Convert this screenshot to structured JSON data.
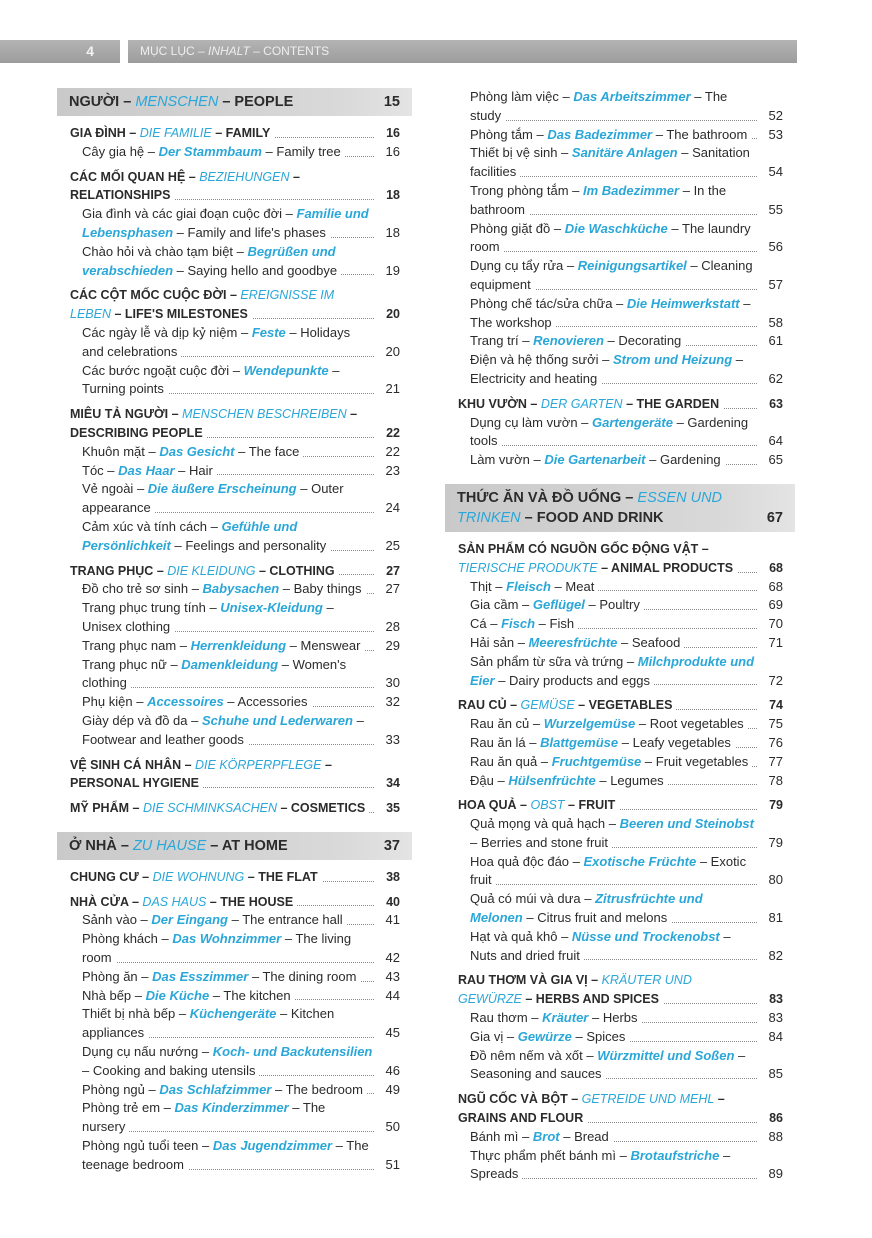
{
  "header": {
    "page_number": "4",
    "title_vi": "MỤC LỤC – ",
    "title_de": "INHALT",
    "title_en": " – CONTENTS"
  },
  "colors": {
    "accent": "#2aa7d8",
    "chapter_bg": "#d0d0d0"
  },
  "left_column": [
    {
      "type": "chapter",
      "vi": "NGƯỜI",
      "de": "MENSCHEN",
      "en": "PEOPLE",
      "page": "15"
    },
    {
      "type": "section",
      "vi": "GIA ĐÌNH",
      "de": "DIE FAMILIE",
      "en": "FAMILY",
      "page": "16"
    },
    {
      "type": "item",
      "vi": "Cây gia hệ",
      "de": "Der Stammbaum",
      "en": "Family tree",
      "page": "16"
    },
    {
      "type": "section",
      "vi": "CÁC MỐI QUAN HỆ",
      "de": "BEZIEHUNGEN",
      "en": "RELATIONSHIPS",
      "page": "18"
    },
    {
      "type": "item",
      "vi": "Gia đình và các giai đoạn cuộc đời",
      "de": "Familie und Lebensphasen",
      "en": "Family and life's phases",
      "page": "18"
    },
    {
      "type": "item",
      "vi": "Chào hỏi và chào tạm biệt",
      "de": "Begrüßen und verabschieden",
      "en": "Saying hello and goodbye",
      "page": "19"
    },
    {
      "type": "section",
      "vi": "CÁC CỘT MỐC CUỘC ĐỜI",
      "de": "EREIGNISSE IM LEBEN",
      "en": "LIFE'S MILESTONES",
      "page": "20"
    },
    {
      "type": "item",
      "vi": "Các ngày lễ và dịp kỷ niệm",
      "de": "Feste",
      "en": "Holidays and celebrations",
      "page": "20"
    },
    {
      "type": "item",
      "vi": "Các bước ngoặt cuộc đời",
      "de": "Wendepunkte",
      "en": "Turning points",
      "page": "21"
    },
    {
      "type": "section",
      "vi": "MIÊU TẢ NGƯỜI",
      "de": "MENSCHEN BESCHREIBEN",
      "en": "DESCRIBING PEOPLE",
      "page": "22"
    },
    {
      "type": "item",
      "vi": "Khuôn mặt",
      "de": "Das Gesicht",
      "en": "The face",
      "page": "22"
    },
    {
      "type": "item",
      "vi": "Tóc",
      "de": "Das Haar",
      "en": "Hair",
      "page": "23"
    },
    {
      "type": "item",
      "vi": "Vẻ ngoài",
      "de": "Die äußere Erscheinung",
      "en": "Outer appearance",
      "page": "24"
    },
    {
      "type": "item",
      "vi": "Cảm xúc và tính cách",
      "de": "Gefühle und Persönlichkeit",
      "en": "Feelings and personality",
      "page": "25"
    },
    {
      "type": "section",
      "vi": "TRANG PHỤC",
      "de": "DIE KLEIDUNG",
      "en": "CLOTHING",
      "page": "27"
    },
    {
      "type": "item",
      "vi": "Đồ cho trẻ sơ sinh",
      "de": "Babysachen",
      "en": "Baby things",
      "page": "27"
    },
    {
      "type": "item",
      "vi": "Trang phục trung tính",
      "de": "Unisex-Kleidung",
      "en": "Unisex clothing",
      "page": "28"
    },
    {
      "type": "item",
      "vi": "Trang phục nam",
      "de": "Herrenkleidung",
      "en": "Menswear",
      "page": "29"
    },
    {
      "type": "item",
      "vi": "Trang phục nữ",
      "de": "Damenkleidung",
      "en": "Women's clothing",
      "page": "30"
    },
    {
      "type": "item",
      "vi": "Phụ kiện",
      "de": "Accessoires",
      "en": "Accessories",
      "page": "32"
    },
    {
      "type": "item",
      "vi": "Giày dép và đồ da",
      "de": "Schuhe und Lederwaren",
      "en": "Footwear and leather goods",
      "page": "33"
    },
    {
      "type": "section",
      "vi": "VỆ SINH CÁ NHÂN",
      "de": "DIE KÖRPERPFLEGE",
      "en": "PERSONAL HYGIENE",
      "page": "34"
    },
    {
      "type": "section",
      "vi": "MỸ PHẨM",
      "de": "DIE SCHMINKSACHEN",
      "en": "COSMETICS",
      "page": "35"
    },
    {
      "type": "chapter",
      "vi": "Ở NHÀ",
      "de": "ZU HAUSE",
      "en": "AT HOME",
      "page": "37"
    },
    {
      "type": "section",
      "vi": "CHUNG CƯ",
      "de": "DIE WOHNUNG",
      "en": "THE FLAT",
      "page": "38"
    },
    {
      "type": "section",
      "vi": "NHÀ CỬA",
      "de": "DAS HAUS",
      "en": "THE HOUSE",
      "page": "40"
    },
    {
      "type": "item",
      "vi": "Sảnh vào",
      "de": "Der Eingang",
      "en": "The entrance hall",
      "page": "41"
    },
    {
      "type": "item",
      "vi": "Phòng khách",
      "de": "Das Wohnzimmer",
      "en": "The living room",
      "page": "42"
    },
    {
      "type": "item",
      "vi": "Phòng ăn",
      "de": "Das Esszimmer",
      "en": "The dining room",
      "page": "43"
    },
    {
      "type": "item",
      "vi": "Nhà bếp",
      "de": "Die Küche",
      "en": "The kitchen",
      "page": "44"
    },
    {
      "type": "item",
      "vi": "Thiết bị nhà bếp",
      "de": "Küchengeräte",
      "en": "Kitchen appliances",
      "page": "45"
    },
    {
      "type": "item",
      "vi": "Dụng cụ nấu nướng",
      "de": "Koch- und Backutensilien",
      "en": "Cooking and baking utensils",
      "page": "46"
    },
    {
      "type": "item",
      "vi": "Phòng ngủ",
      "de": "Das Schlafzimmer",
      "en": "The bedroom",
      "page": "49"
    },
    {
      "type": "item",
      "vi": "Phòng trẻ em",
      "de": "Das Kinderzimmer",
      "en": "The nursery",
      "page": "50"
    },
    {
      "type": "item",
      "vi": "Phòng ngủ tuổi teen",
      "de": "Das Jugendzimmer",
      "en": "The teenage bedroom",
      "page": "51"
    }
  ],
  "right_column": [
    {
      "type": "item",
      "vi": "Phòng làm việc",
      "de": "Das Arbeitszimmer",
      "en": "The study",
      "page": "52"
    },
    {
      "type": "item",
      "vi": "Phòng tắm",
      "de": "Das Badezimmer",
      "en": "The bathroom",
      "page": "53"
    },
    {
      "type": "item",
      "vi": "Thiết bị vệ sinh",
      "de": "Sanitäre Anlagen",
      "en": "Sanitation facilities",
      "page": "54"
    },
    {
      "type": "item",
      "vi": "Trong phòng tắm",
      "de": "Im Badezimmer",
      "en": "In the bathroom",
      "page": "55"
    },
    {
      "type": "item",
      "vi": "Phòng giặt đồ",
      "de": "Die Waschküche",
      "en": "The laundry room",
      "page": "56"
    },
    {
      "type": "item",
      "vi": "Dụng cụ tẩy rửa",
      "de": "Reinigungsartikel",
      "en": "Cleaning equipment",
      "page": "57"
    },
    {
      "type": "item",
      "vi": "Phòng chế tác/sửa chữa",
      "de": "Die Heimwerkstatt",
      "en": "The workshop",
      "page": "58"
    },
    {
      "type": "item",
      "vi": "Trang trí",
      "de": "Renovieren",
      "en": "Decorating",
      "page": "61"
    },
    {
      "type": "item",
      "vi": "Điện và hệ thống sưởi",
      "de": "Strom und Heizung",
      "en": "Electricity and heating",
      "page": "62"
    },
    {
      "type": "section",
      "vi": "KHU VƯỜN",
      "de": "DER GARTEN",
      "en": "THE GARDEN",
      "page": "63"
    },
    {
      "type": "item",
      "vi": "Dụng cụ làm vườn",
      "de": "Gartengeräte",
      "en": "Gardening tools",
      "page": "64"
    },
    {
      "type": "item",
      "vi": "Làm vườn",
      "de": "Die Gartenarbeit",
      "en": "Gardening",
      "page": "65"
    },
    {
      "type": "chapter",
      "vi": "THỨC ĂN VÀ ĐỒ UỐNG",
      "de": "ESSEN UND TRINKEN",
      "en": "FOOD AND DRINK",
      "page": "67"
    },
    {
      "type": "section",
      "vi": "SẢN PHẨM CÓ NGUỒN GỐC ĐỘNG VẬT",
      "de": "TIERISCHE PRODUKTE",
      "en": "ANIMAL PRODUCTS",
      "page": "68"
    },
    {
      "type": "item",
      "vi": "Thịt",
      "de": "Fleisch",
      "en": "Meat",
      "page": "68"
    },
    {
      "type": "item",
      "vi": "Gia cầm",
      "de": "Geflügel",
      "en": "Poultry",
      "page": "69"
    },
    {
      "type": "item",
      "vi": "Cá",
      "de": "Fisch",
      "en": "Fish",
      "page": "70"
    },
    {
      "type": "item",
      "vi": "Hải sản",
      "de": "Meeresfrüchte",
      "en": "Seafood",
      "page": "71"
    },
    {
      "type": "item",
      "vi": "Sản phẩm từ sữa và trứng",
      "de": "Milchprodukte und Eier",
      "en": "Dairy products and eggs",
      "page": "72"
    },
    {
      "type": "section",
      "vi": "RAU CỦ",
      "de": "GEMÜSE",
      "en": "VEGETABLES",
      "page": "74"
    },
    {
      "type": "item",
      "vi": "Rau ăn củ",
      "de": "Wurzelgemüse",
      "en": "Root vegetables",
      "page": "75"
    },
    {
      "type": "item",
      "vi": "Rau ăn lá",
      "de": "Blattgemüse",
      "en": "Leafy vegetables",
      "page": "76"
    },
    {
      "type": "item",
      "vi": "Rau ăn quả",
      "de": "Fruchtgemüse",
      "en": "Fruit vegetables",
      "page": "77"
    },
    {
      "type": "item",
      "vi": "Đậu",
      "de": "Hülsenfrüchte",
      "en": "Legumes",
      "page": "78"
    },
    {
      "type": "section",
      "vi": "HOA QUẢ",
      "de": "OBST",
      "en": "FRUIT",
      "page": "79"
    },
    {
      "type": "item",
      "vi": "Quả mọng và quả hạch",
      "de": "Beeren und Steinobst",
      "en": "Berries and stone fruit",
      "page": "79"
    },
    {
      "type": "item",
      "vi": "Hoa quả độc đáo",
      "de": "Exotische Früchte",
      "en": "Exotic fruit",
      "page": "80"
    },
    {
      "type": "item",
      "vi": "Quả có múi và dưa",
      "de": "Zitrusfrüchte und Melonen",
      "en": "Citrus fruit and melons",
      "page": "81"
    },
    {
      "type": "item",
      "vi": "Hạt và quả khô",
      "de": "Nüsse und Trockenobst",
      "en": "Nuts and dried fruit",
      "page": "82"
    },
    {
      "type": "section",
      "vi": "RAU THƠM VÀ GIA VỊ",
      "de": "KRÄUTER UND GEWÜRZE",
      "en": "HERBS AND SPICES",
      "page": "83"
    },
    {
      "type": "item",
      "vi": "Rau thơm",
      "de": "Kräuter",
      "en": "Herbs",
      "page": "83"
    },
    {
      "type": "item",
      "vi": "Gia vị",
      "de": "Gewürze",
      "en": "Spices",
      "page": "84"
    },
    {
      "type": "item",
      "vi": "Đồ nêm nếm và xốt",
      "de": "Würzmittel und Soßen",
      "en": "Seasoning and sauces",
      "page": "85"
    },
    {
      "type": "section",
      "vi": "NGŨ CỐC VÀ BỘT",
      "de": "GETREIDE UND MEHL",
      "en": "GRAINS AND FLOUR",
      "page": "86"
    },
    {
      "type": "item",
      "vi": "Bánh mì",
      "de": "Brot",
      "en": "Bread",
      "page": "88"
    },
    {
      "type": "item",
      "vi": "Thực phẩm phết bánh mì",
      "de": "Brotaufstriche",
      "en": "Spreads",
      "page": "89"
    }
  ]
}
